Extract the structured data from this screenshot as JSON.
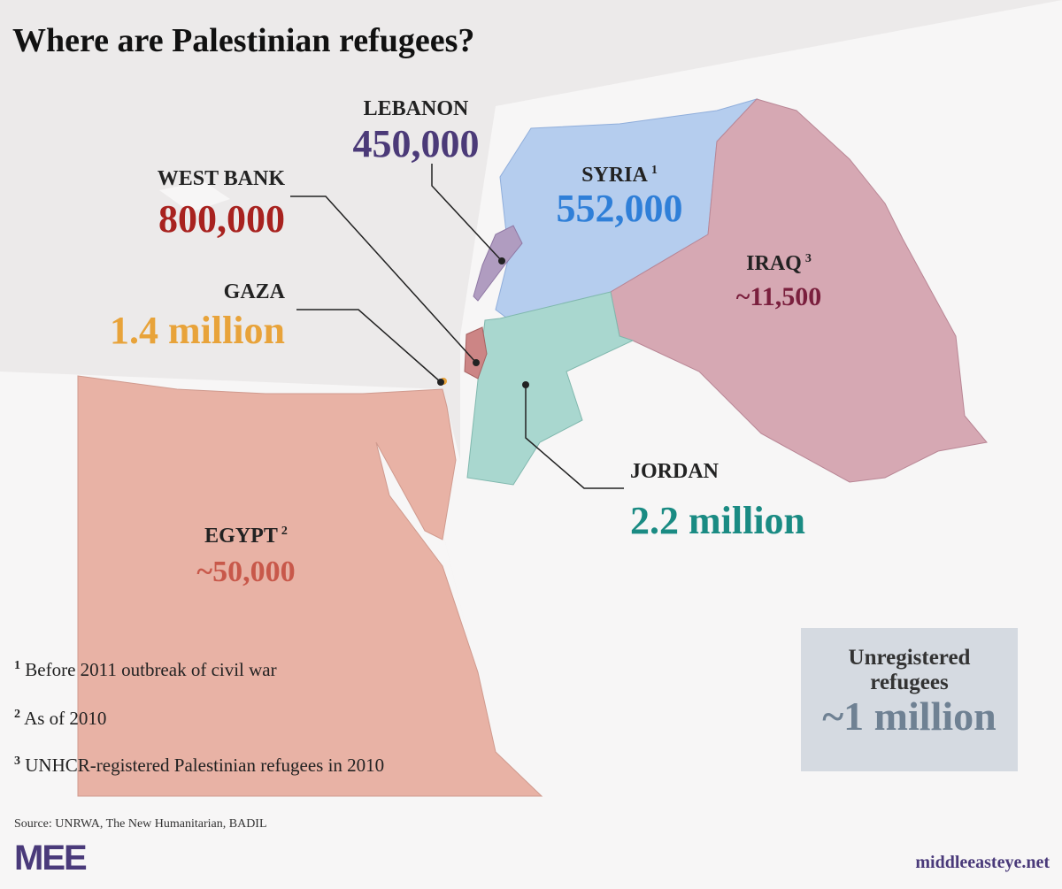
{
  "title": "Where are Palestinian refugees?",
  "regions": [
    {
      "name": "LEBANON",
      "figure": "450,000"
    },
    {
      "name": "SYRIA",
      "note": "1",
      "figure": "552,000"
    },
    {
      "name": "WEST BANK",
      "figure": "800,000"
    },
    {
      "name": "GAZA",
      "figure": "1.4 million"
    },
    {
      "name": "IRAQ",
      "note": "3",
      "figure": "~11,500"
    },
    {
      "name": "JORDAN",
      "figure": "2.2 million"
    },
    {
      "name": "EGYPT",
      "note": "2",
      "figure": "~50,000"
    }
  ],
  "unregistered": {
    "label": "Unregistered refugees",
    "figure": "~1 million"
  },
  "footnotes": [
    {
      "mark": "1",
      "text": "Before 2011 outbreak of civil war"
    },
    {
      "mark": "2",
      "text": "As of 2010"
    },
    {
      "mark": "3",
      "text": "UNHCR-registered Palestinian refugees in 2010"
    }
  ],
  "source": "Source: UNRWA, The New Humanitarian, BADIL",
  "logo": "MEE",
  "site": "middleeasteye.net"
}
